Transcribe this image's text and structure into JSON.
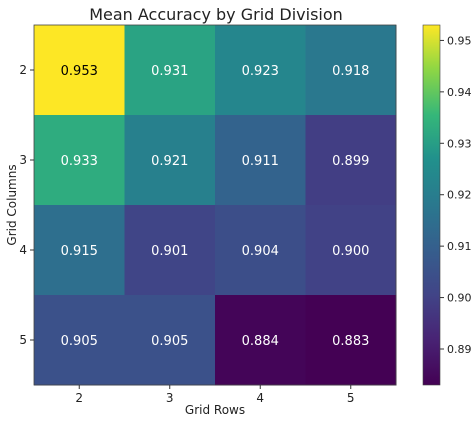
{
  "chart_data": {
    "type": "heatmap",
    "title": "Mean Accuracy by Grid Division",
    "xlabel": "Grid Rows",
    "ylabel": "Grid Columns",
    "x_categories": [
      "2",
      "3",
      "4",
      "5"
    ],
    "y_categories": [
      "2",
      "3",
      "4",
      "5"
    ],
    "values": [
      [
        0.953,
        0.931,
        0.923,
        0.918
      ],
      [
        0.933,
        0.921,
        0.911,
        0.899
      ],
      [
        0.915,
        0.901,
        0.904,
        0.9
      ],
      [
        0.905,
        0.905,
        0.884,
        0.883
      ]
    ],
    "value_labels": [
      [
        "0.953",
        "0.931",
        "0.923",
        "0.918"
      ],
      [
        "0.933",
        "0.921",
        "0.911",
        "0.899"
      ],
      [
        "0.915",
        "0.901",
        "0.904",
        "0.900"
      ],
      [
        "0.905",
        "0.905",
        "0.884",
        "0.883"
      ]
    ],
    "colormap": "viridis",
    "vmin": 0.883,
    "vmax": 0.953,
    "colorbar_ticks": [
      0.89,
      0.9,
      0.91,
      0.92,
      0.93,
      0.94,
      0.95
    ],
    "colorbar_tick_labels": [
      "0.89",
      "0.90",
      "0.91",
      "0.92",
      "0.93",
      "0.94",
      "0.95"
    ],
    "grid": false,
    "legend": "colorbar-right"
  }
}
